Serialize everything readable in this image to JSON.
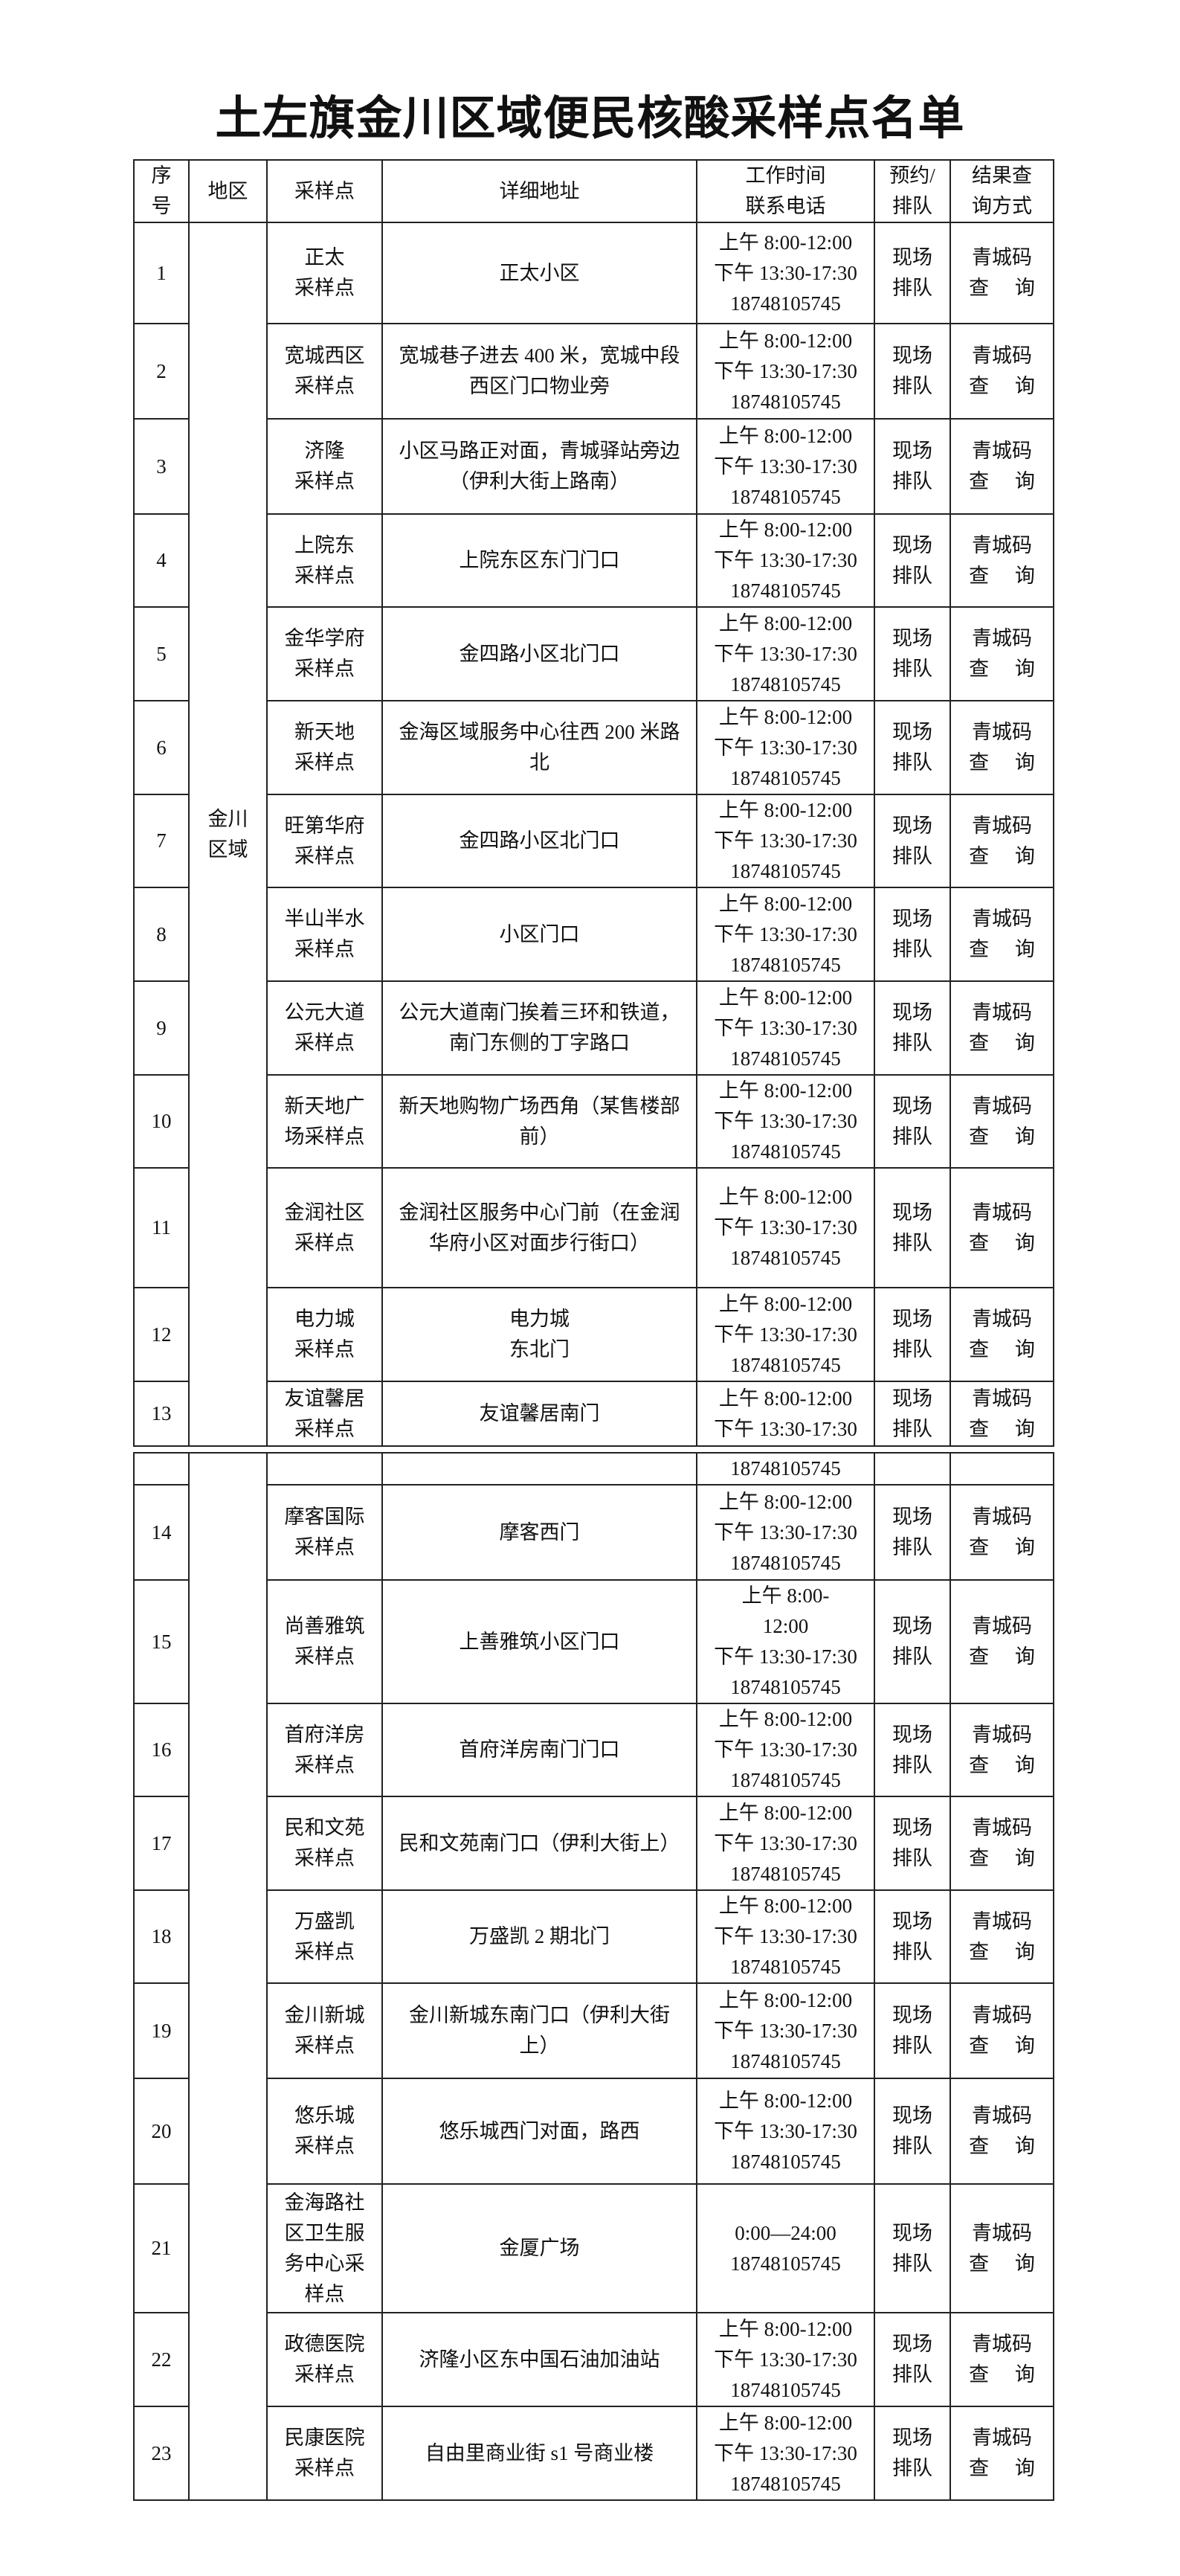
{
  "title": "土左旗金川区域便民核酸采样点名单",
  "headers": [
    [
      "序",
      "号"
    ],
    [
      "地区"
    ],
    [
      "采样点"
    ],
    [
      "详细地址"
    ],
    [
      "工作时间",
      "联系电话"
    ],
    [
      "预约/",
      "排队"
    ],
    [
      "结果查",
      "询方式"
    ]
  ],
  "region": [
    "金川",
    "区域"
  ],
  "queue": [
    "现场",
    "排队"
  ],
  "query": [
    "青城码",
    "查 询"
  ],
  "rows": [
    {
      "no": "1",
      "site": [
        "正太",
        "采样点"
      ],
      "addr": [
        "正太小区"
      ],
      "time": [
        "上午 8:00-12:00",
        "下午 13:30-17:30",
        "18748105745"
      ]
    },
    {
      "no": "2",
      "site": [
        "宽城西区",
        "采样点"
      ],
      "addr": [
        "宽城巷子进去 400 米，宽城中段",
        "西区门口物业旁"
      ],
      "time": [
        "上午 8:00-12:00",
        "下午 13:30-17:30",
        "18748105745"
      ]
    },
    {
      "no": "3",
      "site": [
        "济隆",
        "采样点"
      ],
      "addr": [
        "小区马路正对面，青城驿站旁边",
        "（伊利大街上路南）"
      ],
      "time": [
        "上午 8:00-12:00",
        "下午 13:30-17:30",
        "18748105745"
      ]
    },
    {
      "no": "4",
      "site": [
        "上院东",
        "采样点"
      ],
      "addr": [
        "上院东区东门门口"
      ],
      "time": [
        "上午 8:00-12:00",
        "下午 13:30-17:30",
        "18748105745"
      ]
    },
    {
      "no": "5",
      "site": [
        "金华学府",
        "采样点"
      ],
      "addr": [
        "金四路小区北门口"
      ],
      "time": [
        "上午 8:00-12:00",
        "下午 13:30-17:30",
        "18748105745"
      ]
    },
    {
      "no": "6",
      "site": [
        "新天地",
        "采样点"
      ],
      "addr": [
        "金海区域服务中心往西 200 米路",
        "北"
      ],
      "time": [
        "上午 8:00-12:00",
        "下午 13:30-17:30",
        "18748105745"
      ]
    },
    {
      "no": "7",
      "site": [
        "旺第华府",
        "采样点"
      ],
      "addr": [
        "金四路小区北门口"
      ],
      "time": [
        "上午 8:00-12:00",
        "下午 13:30-17:30",
        "18748105745"
      ]
    },
    {
      "no": "8",
      "site": [
        "半山半水",
        "采样点"
      ],
      "addr": [
        "小区门口"
      ],
      "time": [
        "上午 8:00-12:00",
        "下午 13:30-17:30",
        "18748105745"
      ]
    },
    {
      "no": "9",
      "site": [
        "公元大道",
        "采样点"
      ],
      "addr": [
        "公元大道南门挨着三环和铁道，",
        "南门东侧的丁字路口"
      ],
      "time": [
        "上午 8:00-12:00",
        "下午 13:30-17:30",
        "18748105745"
      ]
    },
    {
      "no": "10",
      "site": [
        "新天地广",
        "场采样点"
      ],
      "addr": [
        "新天地购物广场西角（某售楼部",
        "前）"
      ],
      "time": [
        "上午 8:00-12:00",
        "下午 13:30-17:30",
        "18748105745"
      ]
    },
    {
      "no": "11",
      "site": [
        "金润社区",
        "采样点"
      ],
      "addr": [
        "金润社区服务中心门前（在金润",
        "华府小区对面步行街口）"
      ],
      "time": [
        "上午 8:00-12:00",
        "下午 13:30-17:30",
        "18748105745"
      ]
    },
    {
      "no": "12",
      "site": [
        "电力城",
        "采样点"
      ],
      "addr": [
        "电力城",
        "东北门"
      ],
      "time": [
        "上午 8:00-12:00",
        "下午 13:30-17:30",
        "18748105745"
      ]
    },
    {
      "no": "13",
      "site": [
        "友谊馨居",
        "采样点"
      ],
      "addr": [
        "友谊馨居南门"
      ],
      "time": [
        "上午 8:00-12:00",
        "下午 13:30-17:30"
      ]
    }
  ],
  "continuation_time": [
    "18748105745"
  ],
  "rows2": [
    {
      "no": "14",
      "site": [
        "摩客国际",
        "采样点"
      ],
      "addr": [
        "摩客西门"
      ],
      "time": [
        "上午 8:00-12:00",
        "下午 13:30-17:30",
        "18748105745"
      ]
    },
    {
      "no": "15",
      "site": [
        "尚善雅筑",
        "采样点"
      ],
      "addr": [
        "上善雅筑小区门口"
      ],
      "time": [
        "上午 8:00-",
        "12:00",
        "下午 13:30-17:30",
        "18748105745"
      ]
    },
    {
      "no": "16",
      "site": [
        "首府洋房",
        "采样点"
      ],
      "addr": [
        "首府洋房南门门口"
      ],
      "time": [
        "上午 8:00-12:00",
        "下午 13:30-17:30",
        "18748105745"
      ]
    },
    {
      "no": "17",
      "site": [
        "民和文苑",
        "采样点"
      ],
      "addr": [
        "民和文苑南门口（伊利大街上）"
      ],
      "time": [
        "上午 8:00-12:00",
        "下午 13:30-17:30",
        "18748105745"
      ]
    },
    {
      "no": "18",
      "site": [
        "万盛凯",
        "采样点"
      ],
      "addr": [
        "万盛凯 2 期北门"
      ],
      "time": [
        "上午 8:00-12:00",
        "下午 13:30-17:30",
        "18748105745"
      ]
    },
    {
      "no": "19",
      "site": [
        "金川新城",
        "采样点"
      ],
      "addr": [
        "金川新城东南门口（伊利大街",
        "上）"
      ],
      "time": [
        "上午 8:00-12:00",
        "下午 13:30-17:30",
        "18748105745"
      ]
    },
    {
      "no": "20",
      "site": [
        "悠乐城",
        "采样点"
      ],
      "addr": [
        "悠乐城西门对面，路西"
      ],
      "time": [
        "上午 8:00-12:00",
        "下午 13:30-17:30",
        "18748105745"
      ]
    },
    {
      "no": "21",
      "site": [
        "金海路社",
        "区卫生服",
        "务中心采",
        "样点"
      ],
      "addr": [
        "金厦广场"
      ],
      "time": [
        "0:00—24:00",
        "18748105745"
      ]
    },
    {
      "no": "22",
      "site": [
        "政德医院",
        "采样点"
      ],
      "addr": [
        "济隆小区东中国石油加油站"
      ],
      "time": [
        "上午 8:00-12:00",
        "下午 13:30-17:30",
        "18748105745"
      ]
    },
    {
      "no": "23",
      "site": [
        "民康医院",
        "采样点"
      ],
      "addr": [
        "自由里商业街 s1 号商业楼"
      ],
      "time": [
        "上午 8:00-12:00",
        "下午 13:30-17:30",
        "18748105745"
      ]
    }
  ]
}
